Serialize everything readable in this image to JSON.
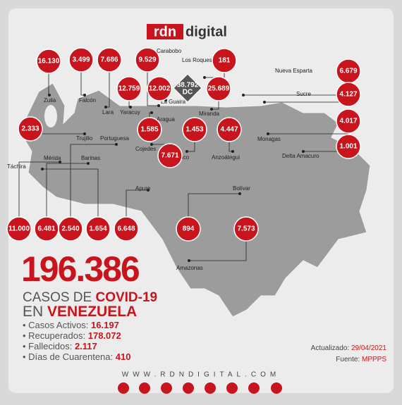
{
  "header": {
    "logo_left": "rdn",
    "logo_right": "digital"
  },
  "regions": [
    "Zulia",
    "Falcón",
    "Lara",
    "Carabobo",
    "Los Roques",
    "Yaracuy",
    "La Guaira",
    "Miranda",
    "Nueva Esparta",
    "Sucre",
    "Monagas",
    "Delta Amacuro",
    "Trujillo",
    "Aragua",
    "Guárico",
    "Anzoátegui",
    "Cojedes",
    "Mérida",
    "Barinas",
    "Portuguesa",
    "Táchira",
    "Apure",
    "Bolívar",
    "Amazonas"
  ],
  "badges": [
    "16.130",
    "3.499",
    "7.686",
    "9.529",
    "181",
    "12.759",
    "12.002",
    "25.689",
    "6.679",
    "4.127",
    "4.017",
    "1.001",
    "2.333",
    "1.585",
    "1.453",
    "4.447",
    "7.671",
    "11.000",
    "6.481",
    "2.540",
    "1.654",
    "6.648",
    "894",
    "7.573"
  ],
  "capital": {
    "value": "38.792",
    "label": "DC"
  },
  "summary": {
    "total": "196.386",
    "line1_a": "CASOS DE",
    "line1_b": "COVID-19",
    "line2_a": "EN",
    "line2_b": "VENEZUELA",
    "items": [
      {
        "label": "Casos Activos:",
        "value": "16.197"
      },
      {
        "label": "Recuperados:",
        "value": "178.072"
      },
      {
        "label": "Fallecidos:",
        "value": "2.117"
      },
      {
        "label": "Días de Cuarentena:",
        "value": "410"
      }
    ]
  },
  "footer": {
    "updated_label": "Actualizado:",
    "updated_value": "29/04/2021",
    "source_label": "Fuente:",
    "source_value": "MPPPS",
    "url": "WWW.RDNDIGITAL.COM"
  }
}
